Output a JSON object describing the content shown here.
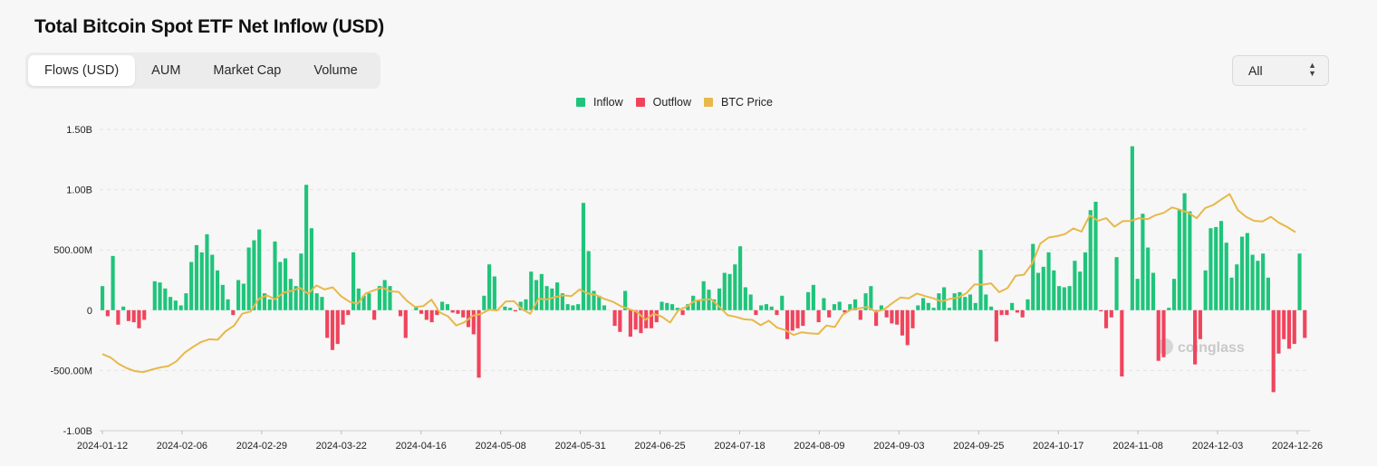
{
  "page": {
    "title": "Total Bitcoin Spot ETF Net Inflow (USD)",
    "tabs": [
      {
        "label": "Flows (USD)",
        "active": true
      },
      {
        "label": "AUM",
        "active": false
      },
      {
        "label": "Market Cap",
        "active": false
      },
      {
        "label": "Volume",
        "active": false
      }
    ],
    "range_select": {
      "value": "All"
    },
    "watermark": "coinglass"
  },
  "chart_data": {
    "type": "bar",
    "title": "Total Bitcoin Spot ETF Net Inflow (USD)",
    "legend": [
      {
        "name": "Inflow",
        "color": "#1fc47a"
      },
      {
        "name": "Outflow",
        "color": "#f0445c"
      },
      {
        "name": "BTC Price",
        "color": "#e8b84a"
      }
    ],
    "legend_position": "top-center",
    "grid": true,
    "ylim": [
      -1000000000,
      1500000000
    ],
    "y_ticks": [
      1500000000,
      1000000000,
      500000000,
      0,
      -500000000,
      -1000000000
    ],
    "y_tick_labels": [
      "1.50B",
      "1.00B",
      "500.00M",
      "0",
      "-500.00M",
      "-1.00B"
    ],
    "x_tick_labels": [
      "2024-01-12",
      "2024-02-06",
      "2024-02-29",
      "2024-03-22",
      "2024-04-16",
      "2024-05-08",
      "2024-05-31",
      "2024-06-25",
      "2024-07-18",
      "2024-08-09",
      "2024-09-03",
      "2024-09-25",
      "2024-10-17",
      "2024-11-08",
      "2024-12-03",
      "2024-12-26"
    ],
    "flows_musd": [
      200,
      -50,
      450,
      -120,
      30,
      -90,
      -100,
      -150,
      -80,
      0,
      240,
      230,
      180,
      110,
      80,
      40,
      140,
      400,
      540,
      480,
      630,
      460,
      330,
      210,
      90,
      -40,
      250,
      220,
      520,
      580,
      670,
      140,
      90,
      570,
      400,
      430,
      260,
      200,
      470,
      1040,
      680,
      140,
      110,
      -230,
      -330,
      -280,
      -120,
      -40,
      480,
      180,
      120,
      140,
      -80,
      200,
      250,
      200,
      0,
      -50,
      -230,
      0,
      30,
      -30,
      -80,
      -100,
      -40,
      70,
      50,
      -20,
      -30,
      -60,
      -140,
      -200,
      -560,
      120,
      380,
      280,
      0,
      30,
      20,
      -10,
      70,
      90,
      320,
      250,
      300,
      200,
      180,
      230,
      140,
      50,
      40,
      50,
      890,
      490,
      160,
      120,
      40,
      0,
      -130,
      -180,
      160,
      -220,
      -160,
      -190,
      -150,
      -150,
      -100,
      70,
      60,
      50,
      20,
      -40,
      50,
      120,
      80,
      240,
      170,
      90,
      180,
      310,
      300,
      380,
      530,
      190,
      130,
      -40,
      40,
      50,
      30,
      -40,
      120,
      -240,
      -170,
      -150,
      -130,
      150,
      210,
      -100,
      100,
      -60,
      50,
      70,
      -20,
      50,
      90,
      -80,
      140,
      200,
      -130,
      40,
      -60,
      -110,
      -120,
      -210,
      -290,
      -150,
      40,
      100,
      60,
      20,
      140,
      190,
      20,
      140,
      150,
      110,
      130,
      60,
      500,
      130,
      30,
      -260,
      -40,
      -40,
      60,
      -20,
      -60,
      90,
      550,
      310,
      360,
      480,
      330,
      200,
      190,
      200,
      410,
      320,
      480,
      830,
      900,
      -10,
      -150,
      -60,
      440,
      -550,
      0,
      1360,
      260,
      800,
      520,
      310,
      -420,
      -390,
      20,
      260,
      830,
      970,
      820,
      -450,
      -240,
      330,
      680,
      690,
      740,
      560,
      270,
      380,
      610,
      640,
      460,
      410,
      470,
      270,
      -680,
      -360,
      -240,
      -320,
      -280,
      470,
      -230
    ],
    "btc_price_usd": [
      46500,
      45200,
      42800,
      41200,
      40100,
      39800,
      40700,
      41500,
      42000,
      43800,
      47000,
      49100,
      51000,
      52000,
      51800,
      55000,
      57000,
      61500,
      62300,
      67000,
      68300,
      66800,
      69300,
      70000,
      71100,
      68900,
      72000,
      70500,
      71300,
      68000,
      66000,
      65200,
      69000,
      70200,
      71200,
      69800,
      69600,
      66300,
      64000,
      64300,
      66700,
      62000,
      60500,
      57100,
      58300,
      60700,
      61400,
      63000,
      62700,
      66000,
      66200,
      63200,
      61500,
      67000,
      66800,
      67600,
      68300,
      68000,
      70500,
      69000,
      68400,
      67000,
      66000,
      64300,
      63200,
      62100,
      59200,
      61500,
      60400,
      58200,
      62800,
      64100,
      66300,
      66700,
      66900,
      64000,
      60900,
      60300,
      59400,
      59200,
      57200,
      58900,
      56300,
      55400,
      53600,
      54600,
      54200,
      54000,
      57100,
      56500,
      61200,
      63000,
      63500,
      64000,
      62200,
      63100,
      65400,
      67500,
      67200,
      69000,
      68000,
      67200,
      66000,
      67000,
      67500,
      69100,
      72400,
      72300,
      72800,
      69500,
      71000,
      75600,
      76000,
      80200,
      87600,
      89800,
      90300,
      91100,
      93200,
      92000,
      98000,
      96000,
      97000,
      93800,
      95900,
      96000,
      97000,
      96600,
      98100,
      99000,
      101000,
      100100,
      99000,
      97000,
      100700,
      101900,
      104000,
      106000,
      100000,
      97500,
      96000,
      95800,
      97500,
      95300,
      93700,
      91800
    ]
  }
}
